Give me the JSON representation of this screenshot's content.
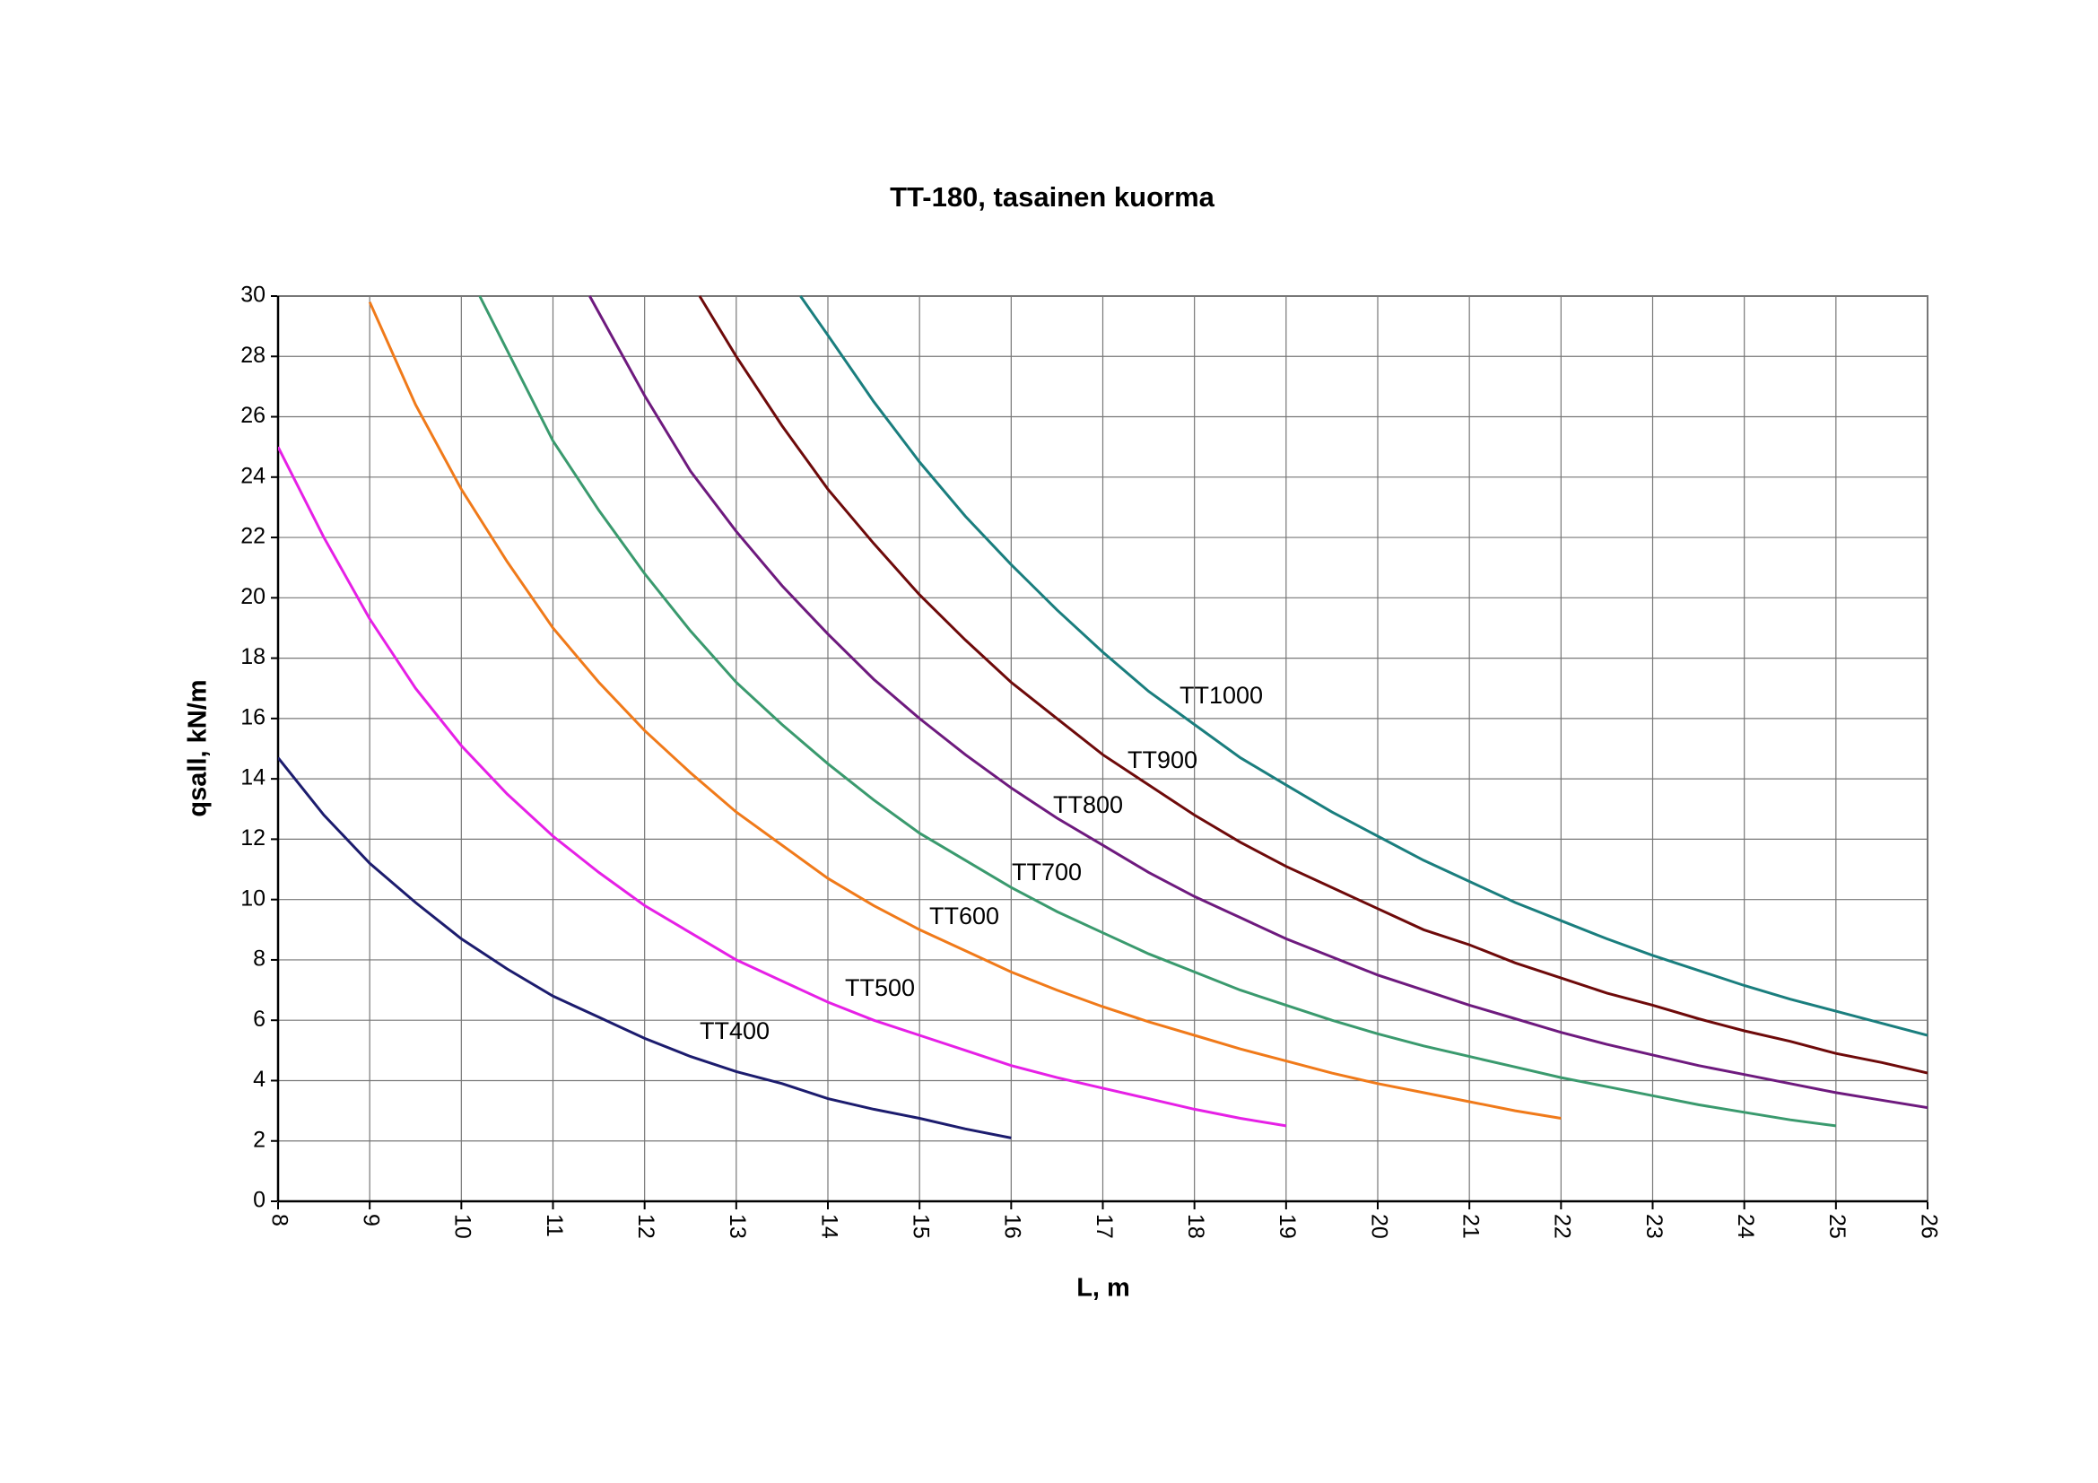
{
  "chart_data": {
    "type": "line",
    "title": "TT-180, tasainen kuorma",
    "x_label": "L, m",
    "y_label": "qsall, kN/m",
    "xlim": [
      8,
      26
    ],
    "ylim": [
      0,
      30
    ],
    "xticks": [
      8,
      9,
      10,
      11,
      12,
      13,
      14,
      15,
      16,
      17,
      18,
      19,
      20,
      21,
      22,
      23,
      24,
      25,
      26
    ],
    "yticks": [
      0,
      2,
      4,
      6,
      8,
      10,
      12,
      14,
      16,
      18,
      20,
      22,
      24,
      26,
      28,
      30
    ],
    "grid": true,
    "series": [
      {
        "name": "TT400",
        "color": "#1c1c6e",
        "x": [
          8,
          8.5,
          9,
          9.5,
          10,
          10.5,
          11,
          11.5,
          12,
          12.5,
          13,
          13.5,
          14,
          14.5,
          15,
          15.5,
          16
        ],
        "values": [
          14.7,
          12.8,
          11.2,
          9.9,
          8.7,
          7.7,
          6.8,
          6.1,
          5.4,
          4.8,
          4.3,
          3.9,
          3.4,
          3.05,
          2.75,
          2.4,
          2.1
        ]
      },
      {
        "name": "TT500",
        "color": "#e620e6",
        "x": [
          8,
          8.5,
          9,
          9.5,
          10,
          10.5,
          11,
          11.5,
          12,
          12.5,
          13,
          13.5,
          14,
          14.5,
          15,
          15.5,
          16,
          16.5,
          17,
          17.5,
          18,
          18.5,
          19
        ],
        "values": [
          25,
          22,
          19.3,
          17,
          15.1,
          13.5,
          12.1,
          10.9,
          9.8,
          8.9,
          8,
          7.3,
          6.6,
          6,
          5.5,
          5,
          4.5,
          4.1,
          3.75,
          3.4,
          3.05,
          2.75,
          2.5
        ]
      },
      {
        "name": "TT600",
        "color": "#f07a1a",
        "x": [
          9,
          9.5,
          10,
          10.5,
          11,
          11.5,
          12,
          12.5,
          13,
          13.5,
          14,
          14.5,
          15,
          15.5,
          16,
          16.5,
          17,
          17.5,
          18,
          18.5,
          19,
          19.5,
          20,
          20.5,
          21,
          21.5,
          22
        ],
        "values": [
          29.8,
          26.4,
          23.6,
          21.2,
          19,
          17.2,
          15.6,
          14.2,
          12.9,
          11.8,
          10.7,
          9.8,
          9,
          8.3,
          7.6,
          7,
          6.45,
          5.95,
          5.5,
          5.05,
          4.65,
          4.25,
          3.9,
          3.6,
          3.3,
          3,
          2.75
        ]
      },
      {
        "name": "TT700",
        "color": "#3a9a6e",
        "x": [
          10.2,
          10.5,
          11,
          11.5,
          12,
          12.5,
          13,
          13.5,
          14,
          14.5,
          15,
          15.5,
          16,
          16.5,
          17,
          17.5,
          18,
          18.5,
          19,
          19.5,
          20,
          20.5,
          21,
          21.5,
          22,
          22.5,
          23,
          23.5,
          24,
          24.5,
          25
        ],
        "values": [
          30,
          28.2,
          25.2,
          22.9,
          20.8,
          18.9,
          17.2,
          15.8,
          14.5,
          13.3,
          12.2,
          11.3,
          10.4,
          9.6,
          8.9,
          8.2,
          7.6,
          7,
          6.5,
          6,
          5.55,
          5.15,
          4.8,
          4.45,
          4.1,
          3.8,
          3.5,
          3.2,
          2.95,
          2.7,
          2.5
        ]
      },
      {
        "name": "TT800",
        "color": "#6e1a7e",
        "x": [
          11.4,
          12,
          12.5,
          13,
          13.5,
          14,
          14.5,
          15,
          15.5,
          16,
          16.5,
          17,
          17.5,
          18,
          18.5,
          19,
          19.5,
          20,
          20.5,
          21,
          21.5,
          22,
          22.5,
          23,
          23.5,
          24,
          24.5,
          25,
          25.5,
          26
        ],
        "values": [
          30,
          26.7,
          24.2,
          22.2,
          20.4,
          18.8,
          17.3,
          16,
          14.8,
          13.7,
          12.7,
          11.8,
          10.9,
          10.1,
          9.4,
          8.7,
          8.1,
          7.5,
          7,
          6.5,
          6.05,
          5.6,
          5.2,
          4.85,
          4.5,
          4.2,
          3.9,
          3.6,
          3.35,
          3.1
        ]
      },
      {
        "name": "TT900",
        "color": "#6e0a0a",
        "x": [
          12.6,
          13,
          13.5,
          14,
          14.5,
          15,
          15.5,
          16,
          16.5,
          17,
          17.5,
          18,
          18.5,
          19,
          19.5,
          20,
          20.5,
          21,
          21.5,
          22,
          22.5,
          23,
          23.5,
          24,
          24.5,
          25,
          25.5,
          26
        ],
        "values": [
          30,
          28,
          25.7,
          23.6,
          21.8,
          20.1,
          18.6,
          17.2,
          16,
          14.8,
          13.8,
          12.8,
          11.9,
          11.1,
          10.4,
          9.7,
          9,
          8.5,
          7.9,
          7.4,
          6.9,
          6.5,
          6.05,
          5.65,
          5.3,
          4.9,
          4.6,
          4.25
        ]
      },
      {
        "name": "TT1000",
        "color": "#1a7e7e",
        "x": [
          13.7,
          14,
          14.5,
          15,
          15.5,
          16,
          16.5,
          17,
          17.5,
          18,
          18.5,
          19,
          19.5,
          20,
          20.5,
          21,
          21.5,
          22,
          22.5,
          23,
          23.5,
          24,
          24.5,
          25,
          25.5,
          26
        ],
        "values": [
          30,
          28.7,
          26.5,
          24.5,
          22.7,
          21.1,
          19.6,
          18.2,
          16.9,
          15.8,
          14.7,
          13.8,
          12.9,
          12.1,
          11.3,
          10.6,
          9.9,
          9.3,
          8.7,
          8.15,
          7.65,
          7.15,
          6.7,
          6.3,
          5.9,
          5.5
        ]
      }
    ]
  }
}
